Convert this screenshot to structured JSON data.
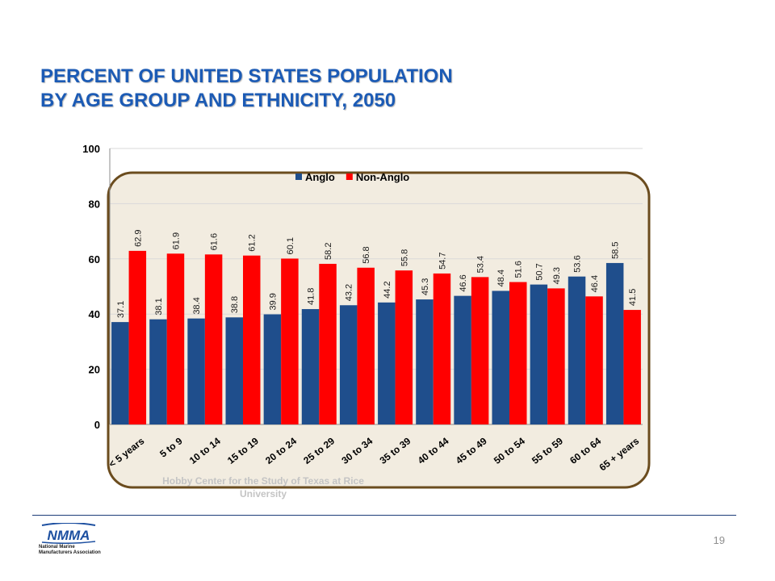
{
  "slide": {
    "title_line1": "PERCENT OF UNITED STATES POPULATION",
    "title_line2": "BY AGE GROUP AND ETHNICITY, 2050",
    "source_line1": "Hobby Center for the Study of Texas at Rice",
    "source_line2": "University",
    "page_number": "19"
  },
  "logo": {
    "mark_text": "NMMA",
    "line1": "National Marine",
    "line2": "Manufacturers Association",
    "colors": {
      "mark": "#1c4fa0"
    }
  },
  "chart_data": {
    "type": "bar",
    "categories": [
      "< 5 years",
      "5 to 9",
      "10 to 14",
      "15 to 19",
      "20 to 24",
      "25 to 29",
      "30 to 34",
      "35 to 39",
      "40 to 44",
      "45 to 49",
      "50 to 54",
      "55 to 59",
      "60 to 64",
      "65 + years"
    ],
    "series": [
      {
        "name": "Anglo",
        "color": "#1f4e8c",
        "values": [
          37.1,
          38.1,
          38.4,
          38.8,
          39.9,
          41.8,
          43.2,
          44.2,
          45.3,
          46.6,
          48.4,
          50.7,
          53.6,
          58.5
        ]
      },
      {
        "name": "Non-Anglo",
        "color": "#ff0000",
        "values": [
          62.9,
          61.9,
          61.6,
          61.2,
          60.1,
          58.2,
          56.8,
          55.8,
          54.7,
          53.4,
          51.6,
          49.3,
          46.4,
          41.5
        ]
      }
    ],
    "title": "",
    "xlabel": "",
    "ylabel": "",
    "ylim": [
      0,
      100
    ],
    "yticks": [
      0,
      20,
      40,
      60,
      80,
      100
    ],
    "grid": true,
    "legend": "top-center",
    "data_labels": true,
    "colors": {
      "plot_panel": "#f2ece0",
      "panel_border": "#6b4c1e",
      "gridline": "#d9d9d9"
    }
  }
}
